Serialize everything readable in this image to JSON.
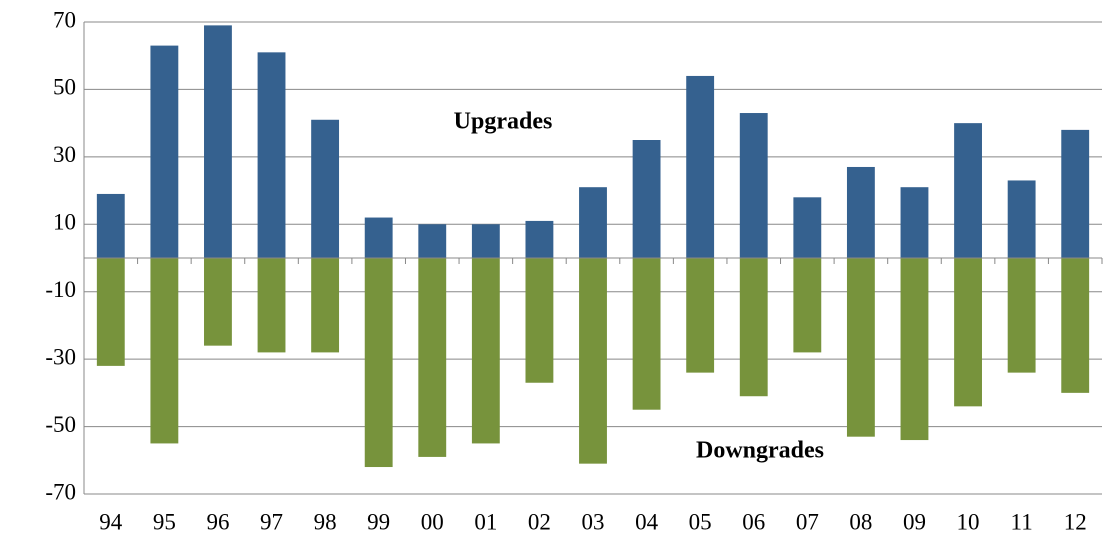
{
  "chart_data": {
    "type": "bar",
    "categories": [
      "94",
      "95",
      "96",
      "97",
      "98",
      "99",
      "00",
      "01",
      "02",
      "03",
      "04",
      "05",
      "06",
      "07",
      "08",
      "09",
      "10",
      "11",
      "12"
    ],
    "series": [
      {
        "name": "Upgrades",
        "color": "#35618f",
        "values": [
          19,
          63,
          69,
          61,
          41,
          12,
          10,
          10,
          11,
          21,
          35,
          54,
          43,
          18,
          27,
          21,
          40,
          23,
          38
        ]
      },
      {
        "name": "Downgrades",
        "color": "#77933c",
        "values": [
          -32,
          -55,
          -26,
          -28,
          -28,
          -62,
          -59,
          -55,
          -37,
          -61,
          -45,
          -34,
          -41,
          -28,
          -53,
          -54,
          -44,
          -34,
          -40
        ]
      }
    ],
    "annotations": [
      "Upgrades",
      "Downgrades"
    ],
    "ylim": [
      -70,
      70
    ],
    "yticks": [
      -70,
      -50,
      -30,
      -10,
      10,
      30,
      50,
      70
    ],
    "grid": true
  }
}
